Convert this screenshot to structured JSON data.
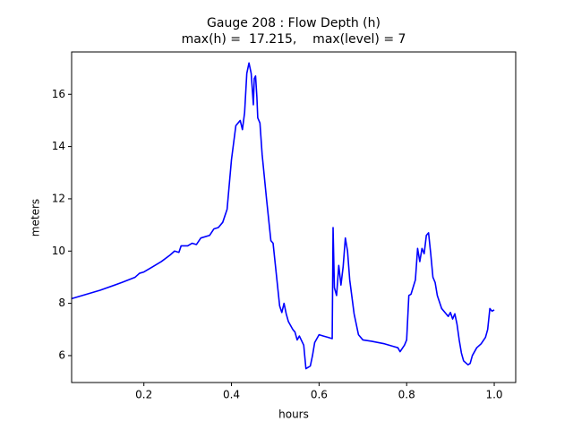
{
  "chart_data": {
    "type": "line",
    "title": "Gauge 208 : Flow Depth (h)",
    "subtitle": "max(h) =  17.215,    max(level) = 7",
    "xlabel": "hours",
    "ylabel": "meters",
    "xlim": [
      0.035,
      1.049
    ],
    "ylim": [
      4.97,
      17.62
    ],
    "xticks": [
      0.2,
      0.4,
      0.6,
      0.8,
      {
        "value": 1,
        "label": "1.0"
      }
    ],
    "yticks": [
      6,
      8,
      10,
      12,
      14,
      16
    ],
    "grid": false,
    "series": [
      {
        "color": "#0000ff",
        "x": [
          0.035,
          0.1,
          0.15,
          0.18,
          0.19,
          0.2,
          0.22,
          0.24,
          0.26,
          0.27,
          0.28,
          0.285,
          0.3,
          0.31,
          0.32,
          0.33,
          0.35,
          0.36,
          0.37,
          0.38,
          0.39,
          0.4,
          0.41,
          0.42,
          0.425,
          0.43,
          0.435,
          0.44,
          0.445,
          0.45,
          0.452,
          0.455,
          0.458,
          0.46,
          0.465,
          0.47,
          0.48,
          0.49,
          0.495,
          0.5,
          0.51,
          0.515,
          0.52,
          0.525,
          0.53,
          0.54,
          0.545,
          0.55,
          0.555,
          0.565,
          0.57,
          0.58,
          0.585,
          0.59,
          0.6,
          0.61,
          0.62,
          0.63,
          0.632,
          0.635,
          0.64,
          0.645,
          0.65,
          0.655,
          0.66,
          0.665,
          0.67,
          0.68,
          0.69,
          0.7,
          0.72,
          0.75,
          0.77,
          0.78,
          0.785,
          0.795,
          0.8,
          0.805,
          0.81,
          0.82,
          0.825,
          0.83,
          0.835,
          0.84,
          0.845,
          0.85,
          0.855,
          0.86,
          0.865,
          0.87,
          0.88,
          0.89,
          0.895,
          0.9,
          0.905,
          0.91,
          0.915,
          0.92,
          0.925,
          0.93,
          0.94,
          0.945,
          0.95,
          0.96,
          0.97,
          0.98,
          0.985,
          0.99,
          0.995,
          1.0
        ],
        "values": [
          8.18,
          8.5,
          8.8,
          9.0,
          9.15,
          9.2,
          9.4,
          9.6,
          9.85,
          10.0,
          9.95,
          10.2,
          10.2,
          10.3,
          10.25,
          10.5,
          10.6,
          10.85,
          10.9,
          11.1,
          11.6,
          13.5,
          14.8,
          15.0,
          14.65,
          15.3,
          16.8,
          17.2,
          16.8,
          15.6,
          16.6,
          16.7,
          15.9,
          15.1,
          14.9,
          13.7,
          12.0,
          10.4,
          10.3,
          9.5,
          7.9,
          7.65,
          8.0,
          7.6,
          7.3,
          7.0,
          6.9,
          6.6,
          6.75,
          6.4,
          5.5,
          5.6,
          6.0,
          6.5,
          6.8,
          6.75,
          6.7,
          6.65,
          10.9,
          8.6,
          8.3,
          9.45,
          8.7,
          9.4,
          10.5,
          10.0,
          8.9,
          7.6,
          6.8,
          6.6,
          6.55,
          6.45,
          6.35,
          6.3,
          6.15,
          6.4,
          6.6,
          8.3,
          8.35,
          8.9,
          10.1,
          9.6,
          10.1,
          9.9,
          10.6,
          10.7,
          9.9,
          9.0,
          8.8,
          8.3,
          7.8,
          7.6,
          7.5,
          7.65,
          7.4,
          7.6,
          7.2,
          6.6,
          6.1,
          5.8,
          5.65,
          5.7,
          6.0,
          6.3,
          6.45,
          6.7,
          7.0,
          7.8,
          7.7,
          7.75
        ]
      }
    ]
  }
}
